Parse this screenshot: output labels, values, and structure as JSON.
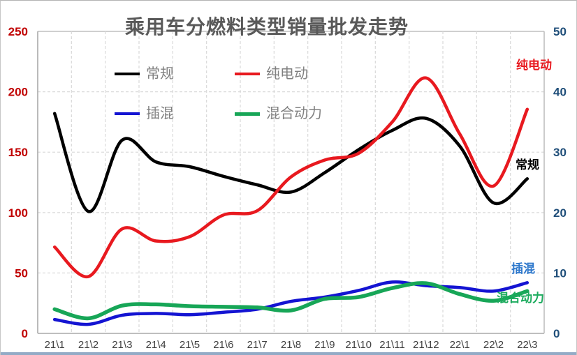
{
  "chart_data": {
    "type": "line",
    "title": "乘用车分燃料类型销量批发走势",
    "categories": [
      "21\\1",
      "21\\2",
      "21\\3",
      "21\\4",
      "21\\5",
      "21\\6",
      "21\\7",
      "21\\8",
      "21\\9",
      "21\\10",
      "21\\11",
      "21\\12",
      "22\\1",
      "22\\2",
      "22\\3"
    ],
    "series": [
      {
        "name": "常规",
        "axis": "left",
        "color": "#000000",
        "label_color": "#000000",
        "line_width": 4.5,
        "values": [
          182,
          101,
          160,
          142,
          138,
          130,
          123,
          117,
          133,
          152,
          168,
          178,
          155,
          108,
          128
        ]
      },
      {
        "name": "纯电动",
        "axis": "right",
        "color": "#e8191f",
        "label_color": "#e8191f",
        "line_width": 4.5,
        "values": [
          14.3,
          9.4,
          17.3,
          15.3,
          16.0,
          19.6,
          20.3,
          25.9,
          28.7,
          29.8,
          35.0,
          42.3,
          33.0,
          24.4,
          37.1
        ]
      },
      {
        "name": "插混",
        "axis": "right",
        "color": "#1414d2",
        "label_color": "#2e78cc",
        "line_width": 4.5,
        "values": [
          2.3,
          1.5,
          3.0,
          3.3,
          3.1,
          3.5,
          4.0,
          5.3,
          6.0,
          7.1,
          8.5,
          7.9,
          7.6,
          7.0,
          8.4
        ]
      },
      {
        "name": "混合动力",
        "axis": "right",
        "color": "#17a657",
        "label_color": "#1cab5e",
        "line_width": 5.5,
        "values": [
          4.0,
          2.5,
          4.6,
          4.8,
          4.5,
          4.4,
          4.3,
          3.8,
          5.7,
          6.0,
          7.5,
          8.3,
          6.5,
          5.4,
          7.0
        ]
      }
    ],
    "left_axis": {
      "min": 0,
      "max": 250,
      "ticks": [
        0,
        50,
        100,
        150,
        200,
        250
      ],
      "color": "#c00000"
    },
    "right_axis": {
      "min": 0,
      "max": 50,
      "ticks": [
        0,
        10,
        20,
        30,
        40,
        50
      ],
      "color": "#1f4e79"
    },
    "x_axis": {
      "color": "#404040"
    },
    "grid": "dashed",
    "legend_position": "inside-top-left",
    "annotations": [
      {
        "text": "纯电动",
        "series": "纯电动"
      },
      {
        "text": "常规",
        "series": "常规"
      },
      {
        "text": "插混",
        "series": "插混"
      },
      {
        "text": "混合动力",
        "series": "混合动力"
      }
    ]
  }
}
